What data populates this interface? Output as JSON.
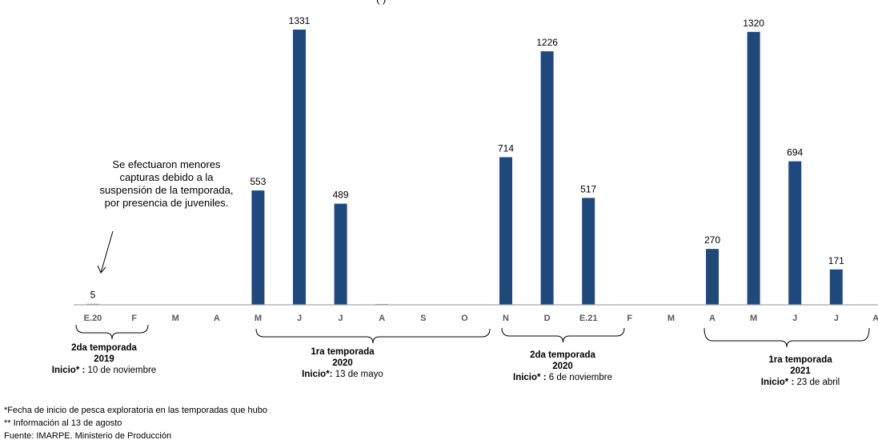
{
  "title_fragment": "(                              )",
  "chart_data": {
    "type": "bar",
    "categories": [
      "E.20",
      "F",
      "M",
      "A",
      "M",
      "J",
      "J",
      "A",
      "S",
      "O",
      "N",
      "D",
      "E.21",
      "F",
      "M",
      "A",
      "M",
      "J",
      "J",
      "A*"
    ],
    "values": [
      5,
      0,
      0,
      0,
      553,
      1331,
      489,
      3,
      0,
      0,
      714,
      1226,
      517,
      0,
      0,
      270,
      1320,
      694,
      171,
      0
    ],
    "labels": [
      "5",
      "",
      "",
      "",
      "553",
      "1331",
      "489",
      "",
      "",
      "",
      "714",
      "1226",
      "517",
      "",
      "",
      "270",
      "1320",
      "694",
      "171",
      ""
    ],
    "ylim": [
      0,
      1331
    ],
    "colors": {
      "bar": "#1f497d",
      "axis": "#a6a6a6",
      "tick_label": "#595959"
    }
  },
  "annotation": {
    "lines": [
      "Se efectuaron menores",
      "capturas debido a la",
      "suspensión de la temporada,",
      "por presencia de juveniles."
    ]
  },
  "seasons": [
    {
      "name": "2da temporada",
      "year": "2019",
      "start_label": "Inicio* :",
      "start_date": " 10 de noviembre"
    },
    {
      "name": "1ra temporada",
      "year": "2020",
      "start_label": "Inicio*:",
      "start_date": " 13 de mayo"
    },
    {
      "name": "2da temporada",
      "year": "2020",
      "start_label": "Inicio* :",
      "start_date": " 6 de noviembre"
    },
    {
      "name": "1ra temporada",
      "year": "2021",
      "start_label": "Inicio* :",
      "start_date": " 23 de abril"
    }
  ],
  "footnotes": [
    "*Fecha de inicio de pesca exploratoria en las temporadas que hubo",
    "** Información al 13 de agosto",
    "Fuente: IMARPE. Ministerio de Producción"
  ]
}
